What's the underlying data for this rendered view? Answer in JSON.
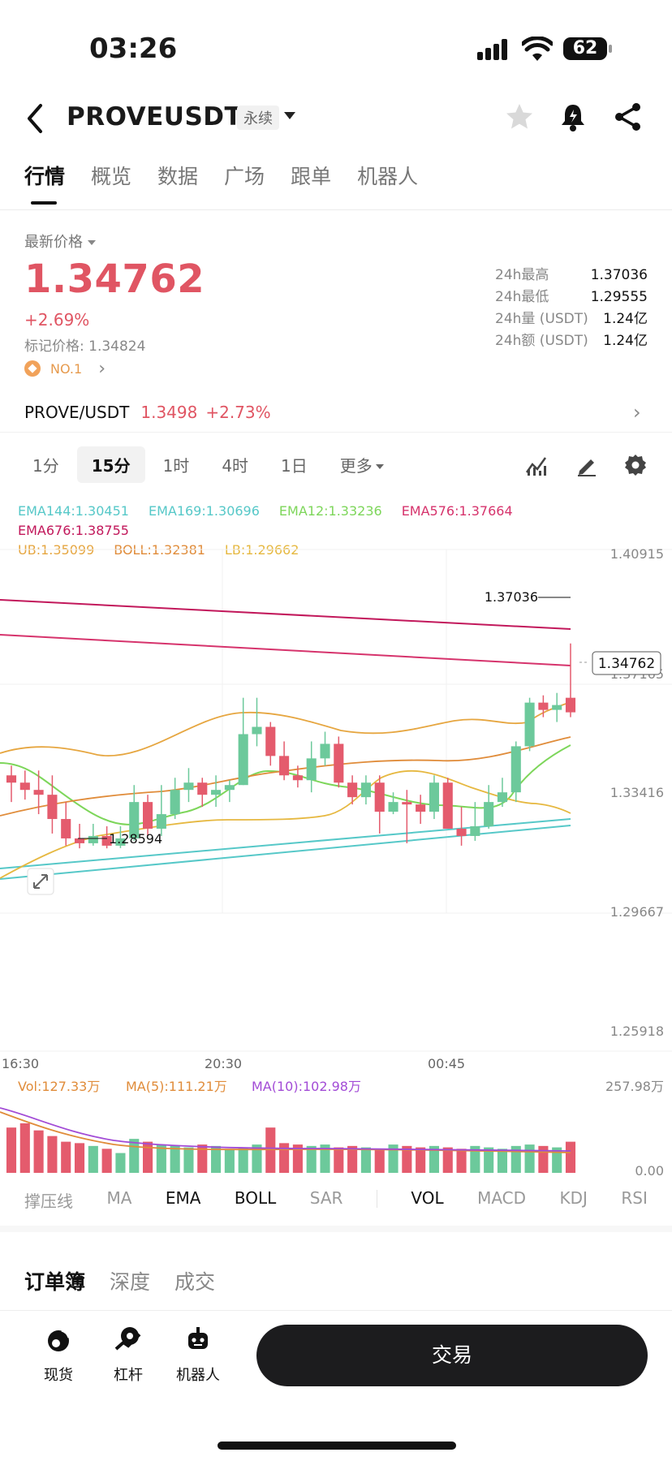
{
  "status_bar": {
    "time": "03:26",
    "battery": "62"
  },
  "header": {
    "pair": "PROVEUSDT",
    "badge": "永续",
    "icons": [
      "back-arrow-icon",
      "star-icon",
      "bell-icon",
      "share-icon"
    ]
  },
  "tabs": [
    "行情",
    "概览",
    "数据",
    "广场",
    "跟单",
    "机器人"
  ],
  "price": {
    "label": "最新价格",
    "value": "1.34762",
    "change_pct": "+2.69%",
    "mark_price": "标记价格: 1.34824",
    "rank": "NO.1"
  },
  "stats": [
    {
      "k": "24h最高",
      "v": "1.37036"
    },
    {
      "k": "24h最低",
      "v": "1.29555"
    },
    {
      "k": "24h量 (USDT)",
      "v": "1.24亿"
    },
    {
      "k": "24h额 (USDT)",
      "v": "1.24亿"
    }
  ],
  "pair_row": {
    "symbol": "PROVE/USDT",
    "price": "1.3498",
    "change": "+2.73%"
  },
  "timeframes": [
    "1分",
    "15分",
    "1时",
    "4时",
    "1日"
  ],
  "timeframe_more": "更多",
  "legend": {
    "line1": [
      {
        "text": "EMA144:1.30451",
        "color": "#56c8c8"
      },
      {
        "text": "EMA169:1.30696",
        "color": "#56c8c8"
      },
      {
        "text": "EMA12:1.33236",
        "color": "#7dd65a"
      },
      {
        "text": "EMA576:1.37664",
        "color": "#d6336c"
      }
    ],
    "line2": [
      {
        "text": "EMA676:1.38755",
        "color": "#c2185b"
      }
    ],
    "line3": [
      {
        "text": "UB:1.35099",
        "color": "#e6a640"
      },
      {
        "text": "BOLL:1.32381",
        "color": "#e08c3a"
      },
      {
        "text": "LB:1.29662",
        "color": "#e6b840"
      }
    ]
  },
  "chart_data": {
    "type": "candlestick",
    "y_ticks": [
      "1.40915",
      "1.37165",
      "1.33416",
      "1.29667",
      "1.25918"
    ],
    "x_ticks": [
      "16:30",
      "20:30",
      "00:45"
    ],
    "high_label": "1.37036",
    "low_label": "1.28594",
    "current_label": "1.34762",
    "ylim": [
      1.25918,
      1.40915
    ],
    "candles": [
      {
        "o": 1.316,
        "c": 1.313,
        "h": 1.32,
        "l": 1.305
      },
      {
        "o": 1.313,
        "c": 1.31,
        "h": 1.318,
        "l": 1.306
      },
      {
        "o": 1.31,
        "c": 1.308,
        "h": 1.318,
        "l": 1.3
      },
      {
        "o": 1.308,
        "c": 1.298,
        "h": 1.316,
        "l": 1.292
      },
      {
        "o": 1.298,
        "c": 1.29,
        "h": 1.305,
        "l": 1.287
      },
      {
        "o": 1.29,
        "c": 1.288,
        "h": 1.296,
        "l": 1.2859
      },
      {
        "o": 1.288,
        "c": 1.291,
        "h": 1.296,
        "l": 1.287
      },
      {
        "o": 1.291,
        "c": 1.287,
        "h": 1.295,
        "l": 1.2859
      },
      {
        "o": 1.287,
        "c": 1.29,
        "h": 1.295,
        "l": 1.286
      },
      {
        "o": 1.29,
        "c": 1.305,
        "h": 1.312,
        "l": 1.289
      },
      {
        "o": 1.305,
        "c": 1.294,
        "h": 1.308,
        "l": 1.291
      },
      {
        "o": 1.294,
        "c": 1.3,
        "h": 1.312,
        "l": 1.291
      },
      {
        "o": 1.3,
        "c": 1.31,
        "h": 1.315,
        "l": 1.298
      },
      {
        "o": 1.31,
        "c": 1.313,
        "h": 1.319,
        "l": 1.305
      },
      {
        "o": 1.313,
        "c": 1.308,
        "h": 1.315,
        "l": 1.303
      },
      {
        "o": 1.308,
        "c": 1.31,
        "h": 1.316,
        "l": 1.303
      },
      {
        "o": 1.31,
        "c": 1.312,
        "h": 1.314,
        "l": 1.305
      },
      {
        "o": 1.312,
        "c": 1.333,
        "h": 1.348,
        "l": 1.312
      },
      {
        "o": 1.333,
        "c": 1.336,
        "h": 1.348,
        "l": 1.328
      },
      {
        "o": 1.336,
        "c": 1.324,
        "h": 1.338,
        "l": 1.32
      },
      {
        "o": 1.324,
        "c": 1.316,
        "h": 1.33,
        "l": 1.314
      },
      {
        "o": 1.316,
        "c": 1.314,
        "h": 1.32,
        "l": 1.311
      },
      {
        "o": 1.314,
        "c": 1.323,
        "h": 1.33,
        "l": 1.309
      },
      {
        "o": 1.323,
        "c": 1.329,
        "h": 1.334,
        "l": 1.32
      },
      {
        "o": 1.329,
        "c": 1.313,
        "h": 1.332,
        "l": 1.311
      },
      {
        "o": 1.313,
        "c": 1.307,
        "h": 1.316,
        "l": 1.304
      },
      {
        "o": 1.307,
        "c": 1.313,
        "h": 1.316,
        "l": 1.304
      },
      {
        "o": 1.313,
        "c": 1.301,
        "h": 1.316,
        "l": 1.292
      },
      {
        "o": 1.301,
        "c": 1.305,
        "h": 1.309,
        "l": 1.3
      },
      {
        "o": 1.305,
        "c": 1.304,
        "h": 1.31,
        "l": 1.288
      },
      {
        "o": 1.304,
        "c": 1.301,
        "h": 1.308,
        "l": 1.296
      },
      {
        "o": 1.301,
        "c": 1.313,
        "h": 1.316,
        "l": 1.298
      },
      {
        "o": 1.313,
        "c": 1.294,
        "h": 1.315,
        "l": 1.294
      },
      {
        "o": 1.294,
        "c": 1.291,
        "h": 1.303,
        "l": 1.287
      },
      {
        "o": 1.291,
        "c": 1.295,
        "h": 1.305,
        "l": 1.289
      },
      {
        "o": 1.295,
        "c": 1.305,
        "h": 1.312,
        "l": 1.294
      },
      {
        "o": 1.305,
        "c": 1.309,
        "h": 1.315,
        "l": 1.303
      },
      {
        "o": 1.309,
        "c": 1.328,
        "h": 1.33,
        "l": 1.305
      },
      {
        "o": 1.328,
        "c": 1.346,
        "h": 1.348,
        "l": 1.326
      },
      {
        "o": 1.346,
        "c": 1.343,
        "h": 1.349,
        "l": 1.34
      },
      {
        "o": 1.343,
        "c": 1.345,
        "h": 1.35,
        "l": 1.338
      },
      {
        "o": 1.348,
        "c": 1.342,
        "h": 1.3704,
        "l": 1.34
      }
    ],
    "volume": {
      "labels": [
        "Vol:127.33万",
        "MA(5):111.21万",
        "MA(10):102.98万"
      ],
      "label_colors": [
        "#e08c3a",
        "#e08c3a",
        "#a24bd6"
      ],
      "top": "257.98万",
      "bottom": "0.00",
      "max": 257.98,
      "bars": [
        160,
        175,
        150,
        130,
        110,
        105,
        95,
        85,
        70,
        120,
        110,
        100,
        95,
        90,
        100,
        95,
        85,
        90,
        100,
        160,
        105,
        100,
        95,
        100,
        90,
        95,
        90,
        85,
        100,
        95,
        90,
        95,
        90,
        85,
        95,
        90,
        85,
        95,
        100,
        95,
        90,
        110
      ]
    }
  },
  "indicators": [
    "撑压线",
    "MA",
    "EMA",
    "BOLL",
    "SAR",
    "VOL",
    "MACD",
    "KDJ",
    "RSI"
  ],
  "orderbook_tabs": [
    "订单簿",
    "深度",
    "成交"
  ],
  "bottom_nav": [
    {
      "label": "现货",
      "icon": "spot-icon"
    },
    {
      "label": "杠杆",
      "icon": "margin-icon"
    },
    {
      "label": "机器人",
      "icon": "robot-icon"
    }
  ],
  "trade_button": "交易"
}
